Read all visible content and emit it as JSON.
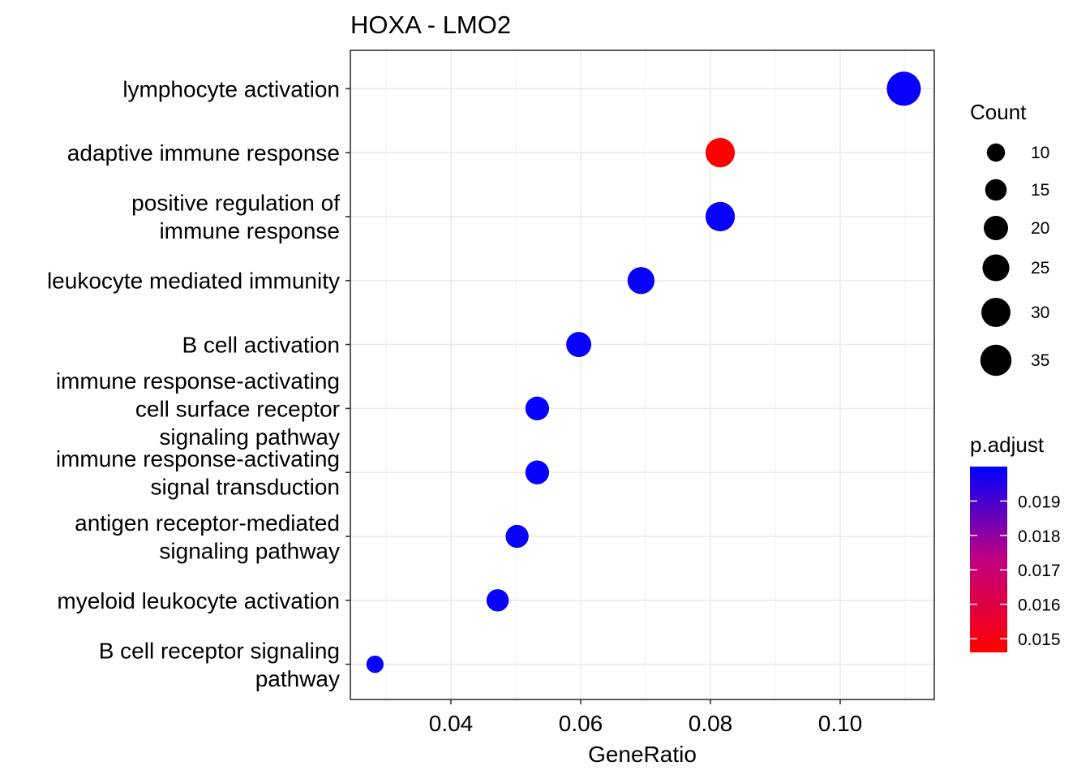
{
  "chart_data": {
    "type": "scatter",
    "title": "HOXA - LMO2",
    "xlabel": "GeneRatio",
    "ylabel": "",
    "xlim": [
      0.0245,
      0.1145
    ],
    "x_ticks": [
      0.04,
      0.06,
      0.08,
      0.1
    ],
    "x_tick_labels": [
      "0.04",
      "0.06",
      "0.08",
      "0.10"
    ],
    "grid": true,
    "categories": [
      [
        "lymphocyte activation"
      ],
      [
        "adaptive immune response"
      ],
      [
        "positive regulation of",
        "immune response"
      ],
      [
        "leukocyte mediated immunity"
      ],
      [
        "B cell activation"
      ],
      [
        "immune response-activating",
        "cell surface receptor",
        "signaling pathway"
      ],
      [
        "immune response-activating",
        "signal transduction"
      ],
      [
        "antigen receptor-mediated",
        "signaling pathway"
      ],
      [
        "myeloid leukocyte activation"
      ],
      [
        "B cell receptor signaling",
        "pathway"
      ]
    ],
    "points": [
      {
        "x": 0.1098,
        "count": 35,
        "p_adjust": 0.0199
      },
      {
        "x": 0.0815,
        "count": 26,
        "p_adjust": 0.0146
      },
      {
        "x": 0.0815,
        "count": 26,
        "p_adjust": 0.0199
      },
      {
        "x": 0.0693,
        "count": 22,
        "p_adjust": 0.0199
      },
      {
        "x": 0.0597,
        "count": 19,
        "p_adjust": 0.0199
      },
      {
        "x": 0.0533,
        "count": 17,
        "p_adjust": 0.0199
      },
      {
        "x": 0.0533,
        "count": 17,
        "p_adjust": 0.0199
      },
      {
        "x": 0.0502,
        "count": 16,
        "p_adjust": 0.0199
      },
      {
        "x": 0.0472,
        "count": 15,
        "p_adjust": 0.0199
      },
      {
        "x": 0.0283,
        "count": 9,
        "p_adjust": 0.0199
      }
    ],
    "size_legend": {
      "title": "Count",
      "values": [
        10,
        15,
        20,
        25,
        30,
        35
      ],
      "labels": [
        "10",
        "15",
        "20",
        "25",
        "30",
        "35"
      ]
    },
    "color_legend": {
      "title": "p.adjust",
      "min": 0.0146,
      "max": 0.02,
      "low_color": "#ff0000",
      "high_color": "#0000ff",
      "ticks": [
        0.019,
        0.018,
        0.017,
        0.016,
        0.015
      ],
      "tick_labels": [
        "0.019",
        "0.018",
        "0.017",
        "0.016",
        "0.015"
      ]
    },
    "legend_position": "right"
  }
}
